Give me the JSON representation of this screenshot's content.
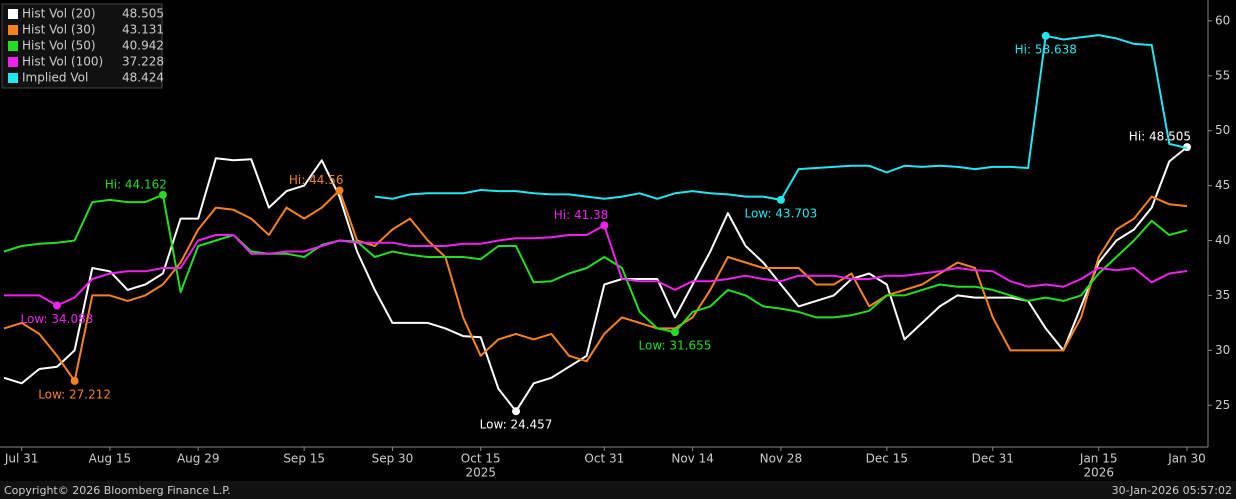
{
  "chart_data": {
    "type": "line",
    "categories": [
      null,
      "Jul 31",
      null,
      null,
      null,
      null,
      "Aug 15",
      null,
      null,
      null,
      null,
      "Aug 29",
      null,
      null,
      null,
      null,
      null,
      "Sep 15",
      null,
      null,
      null,
      null,
      "Sep 30",
      null,
      null,
      null,
      null,
      "Oct 15",
      null,
      null,
      null,
      null,
      null,
      null,
      "Oct 31",
      null,
      null,
      null,
      null,
      "Nov 14",
      null,
      null,
      null,
      null,
      "Nov 28",
      null,
      null,
      null,
      null,
      null,
      "Dec 15",
      null,
      null,
      null,
      null,
      null,
      "Dec 31",
      null,
      null,
      null,
      null,
      null,
      "Jan 15",
      null,
      null,
      null,
      null,
      "Jan 30"
    ],
    "years": [
      null,
      null,
      null,
      null,
      null,
      null,
      null,
      null,
      null,
      null,
      null,
      null,
      null,
      null,
      null,
      null,
      null,
      null,
      null,
      null,
      null,
      null,
      null,
      null,
      null,
      null,
      null,
      "2025",
      null,
      null,
      null,
      null,
      null,
      null,
      null,
      null,
      null,
      null,
      null,
      null,
      null,
      null,
      null,
      null,
      null,
      null,
      null,
      null,
      null,
      null,
      null,
      null,
      null,
      null,
      null,
      null,
      null,
      null,
      null,
      null,
      null,
      null,
      "2026",
      null,
      null,
      null,
      null,
      null
    ],
    "series": [
      {
        "name": "Hist Vol (20)",
        "color": "#ffffff",
        "values": [
          27.5,
          27,
          28.3,
          28.5,
          30,
          37.5,
          37.2,
          35.5,
          36,
          37,
          42,
          42,
          47.5,
          47.3,
          47.4,
          43,
          44.5,
          45,
          47.3,
          44,
          39,
          35.5,
          32.5,
          32.5,
          32.5,
          32,
          31.3,
          31.2,
          26.5,
          24.457,
          27,
          27.5,
          28.5,
          29.5,
          36,
          36.5,
          36.5,
          36.5,
          33,
          36,
          39,
          42.5,
          39.5,
          38,
          36,
          34,
          34.5,
          35,
          36.5,
          37,
          36,
          31,
          32.5,
          34,
          35,
          34.8,
          34.8,
          34.8,
          34.5,
          32,
          30,
          34,
          38,
          40,
          41,
          43,
          47.2,
          48.505
        ],
        "value_labels": [
          null,
          null,
          null,
          null,
          null,
          null,
          null,
          null,
          null,
          null,
          null,
          null,
          null,
          null,
          null,
          null,
          null,
          null,
          null,
          null,
          null,
          null,
          null,
          null,
          null,
          null,
          null,
          null,
          null,
          "Low: 24.457",
          null,
          null,
          null,
          null,
          null,
          null,
          null,
          null,
          null,
          null,
          null,
          null,
          null,
          null,
          null,
          null,
          null,
          null,
          null,
          null,
          null,
          null,
          null,
          null,
          null,
          null,
          null,
          null,
          null,
          null,
          null,
          null,
          null,
          null,
          null,
          null,
          null,
          "Hi: 48.505"
        ]
      },
      {
        "name": "Hist Vol (30)",
        "color": "#f5821f",
        "values": [
          32,
          32.5,
          31.5,
          29.5,
          27.212,
          35,
          35,
          34.5,
          35,
          36,
          38,
          41,
          43,
          42.8,
          42,
          40.5,
          43,
          42,
          43,
          44.56,
          40,
          39.5,
          41,
          42,
          40,
          38.5,
          33,
          29.5,
          31,
          31.5,
          31,
          31.5,
          29.5,
          29,
          31.5,
          33,
          32.5,
          32,
          32,
          33,
          35.5,
          38.5,
          38,
          37.5,
          37.5,
          37.5,
          36,
          36,
          37,
          34,
          35,
          35.5,
          36,
          37,
          38,
          37.5,
          33,
          30,
          30,
          30,
          30,
          33,
          38.5,
          41,
          42,
          44,
          43.3,
          43.131
        ],
        "value_labels": [
          null,
          null,
          null,
          null,
          "Low: 27.212",
          null,
          null,
          null,
          null,
          null,
          null,
          null,
          null,
          null,
          null,
          null,
          null,
          null,
          null,
          "Hi: 44.56",
          null,
          null,
          null,
          null,
          null,
          null,
          null,
          null,
          null,
          null,
          null,
          null,
          null,
          null,
          null,
          null,
          null,
          null,
          null,
          null,
          null,
          null,
          null,
          null,
          null,
          null,
          null,
          null,
          null,
          null,
          null,
          null,
          null,
          null,
          null,
          null,
          null,
          null,
          null,
          null,
          null,
          null,
          null,
          null,
          null,
          null,
          null,
          null
        ]
      },
      {
        "name": "Hist Vol (50)",
        "color": "#22dd22",
        "values": [
          39,
          39.5,
          39.7,
          39.8,
          40,
          43.5,
          43.7,
          43.5,
          43.5,
          44.162,
          35.3,
          39.5,
          40,
          40.5,
          39,
          38.8,
          38.8,
          38.5,
          39.6,
          40,
          39.9,
          38.5,
          39,
          38.7,
          38.5,
          38.5,
          38.5,
          38.3,
          39.5,
          39.5,
          36.2,
          36.3,
          37,
          37.5,
          38.5,
          37.5,
          33.5,
          32,
          31.655,
          33.5,
          34,
          35.5,
          35,
          34,
          33.8,
          33.5,
          33,
          33,
          33.2,
          33.6,
          35,
          35,
          35.5,
          36,
          35.8,
          35.8,
          35.5,
          35,
          34.5,
          34.8,
          34.5,
          35,
          37,
          38.5,
          40,
          41.8,
          40.5,
          40.942
        ],
        "value_labels": [
          null,
          null,
          null,
          null,
          null,
          null,
          null,
          null,
          null,
          "Hi: 44.162",
          null,
          null,
          null,
          null,
          null,
          null,
          null,
          null,
          null,
          null,
          null,
          null,
          null,
          null,
          null,
          null,
          null,
          null,
          null,
          null,
          null,
          null,
          null,
          null,
          null,
          null,
          null,
          null,
          "Low: 31.655",
          null,
          null,
          null,
          null,
          null,
          null,
          null,
          null,
          null,
          null,
          null,
          null,
          null,
          null,
          null,
          null,
          null,
          null,
          null,
          null,
          null,
          null,
          null,
          null,
          null,
          null,
          null,
          null,
          null
        ]
      },
      {
        "name": "Hist Vol (100)",
        "color": "#ee22ee",
        "values": [
          35,
          35,
          35,
          34.083,
          34.8,
          36.5,
          37,
          37.2,
          37.2,
          37.5,
          37.5,
          40,
          40.5,
          40.5,
          38.8,
          38.8,
          39,
          39,
          39.5,
          40,
          39.8,
          39.8,
          39.8,
          39.5,
          39.5,
          39.5,
          39.7,
          39.7,
          40,
          40.2,
          40.2,
          40.3,
          40.5,
          40.5,
          41.38,
          36.5,
          36.3,
          36.3,
          35.5,
          36.3,
          36.3,
          36.5,
          36.8,
          36.5,
          36.3,
          36.8,
          36.8,
          36.8,
          36.5,
          36.5,
          36.8,
          36.8,
          37,
          37.2,
          37.5,
          37.3,
          37.2,
          36.3,
          35.8,
          36,
          35.8,
          36.5,
          37.5,
          37.3,
          37.5,
          36.2,
          37,
          37.228
        ],
        "value_labels": [
          null,
          null,
          null,
          "Low: 34.083",
          null,
          null,
          null,
          null,
          null,
          null,
          null,
          null,
          null,
          null,
          null,
          null,
          null,
          null,
          null,
          null,
          null,
          null,
          null,
          null,
          null,
          null,
          null,
          null,
          null,
          null,
          null,
          null,
          null,
          null,
          "Hi: 41.38",
          null,
          null,
          null,
          null,
          null,
          null,
          null,
          null,
          null,
          null,
          null,
          null,
          null,
          null,
          null,
          null,
          null,
          null,
          null,
          null,
          null,
          null,
          null,
          null,
          null,
          null,
          null,
          null,
          null,
          null,
          null,
          null,
          null
        ]
      },
      {
        "name": "Implied Vol",
        "color": "#22e6f0",
        "values": [
          null,
          null,
          null,
          null,
          null,
          null,
          null,
          null,
          null,
          null,
          null,
          null,
          null,
          null,
          null,
          null,
          null,
          null,
          null,
          null,
          null,
          44,
          43.8,
          44.2,
          44.3,
          44.3,
          44.3,
          44.6,
          44.5,
          44.5,
          44.3,
          44.2,
          44.2,
          44,
          43.8,
          44,
          44.3,
          43.8,
          44.3,
          44.5,
          44.3,
          44.2,
          44,
          44,
          43.703,
          46.5,
          46.6,
          46.7,
          46.8,
          46.8,
          46.2,
          46.8,
          46.7,
          46.8,
          46.7,
          46.5,
          46.7,
          46.7,
          46.6,
          58.638,
          58.3,
          58.5,
          58.7,
          58.4,
          57.9,
          57.8,
          48.8,
          48.424
        ],
        "value_labels": [
          null,
          null,
          null,
          null,
          null,
          null,
          null,
          null,
          null,
          null,
          null,
          null,
          null,
          null,
          null,
          null,
          null,
          null,
          null,
          null,
          null,
          null,
          null,
          null,
          null,
          null,
          null,
          null,
          null,
          null,
          null,
          null,
          null,
          null,
          null,
          null,
          null,
          null,
          null,
          null,
          null,
          null,
          null,
          null,
          "Low: 43.703",
          null,
          null,
          null,
          null,
          null,
          null,
          null,
          null,
          null,
          null,
          null,
          null,
          null,
          null,
          "Hi: 58.638",
          null,
          null,
          null,
          null,
          null,
          null,
          null,
          null
        ]
      }
    ],
    "ylim": [
      21.2,
      61.9
    ],
    "yticks": [
      25,
      30,
      35,
      40,
      45,
      50,
      55,
      60
    ],
    "y_axis_side": "right",
    "grid": false,
    "legend": "top-left",
    "source": "Copyright© 2026 Bloomberg Finance L.P.",
    "timestamp": "30-Jan-2026 05:57:02"
  }
}
